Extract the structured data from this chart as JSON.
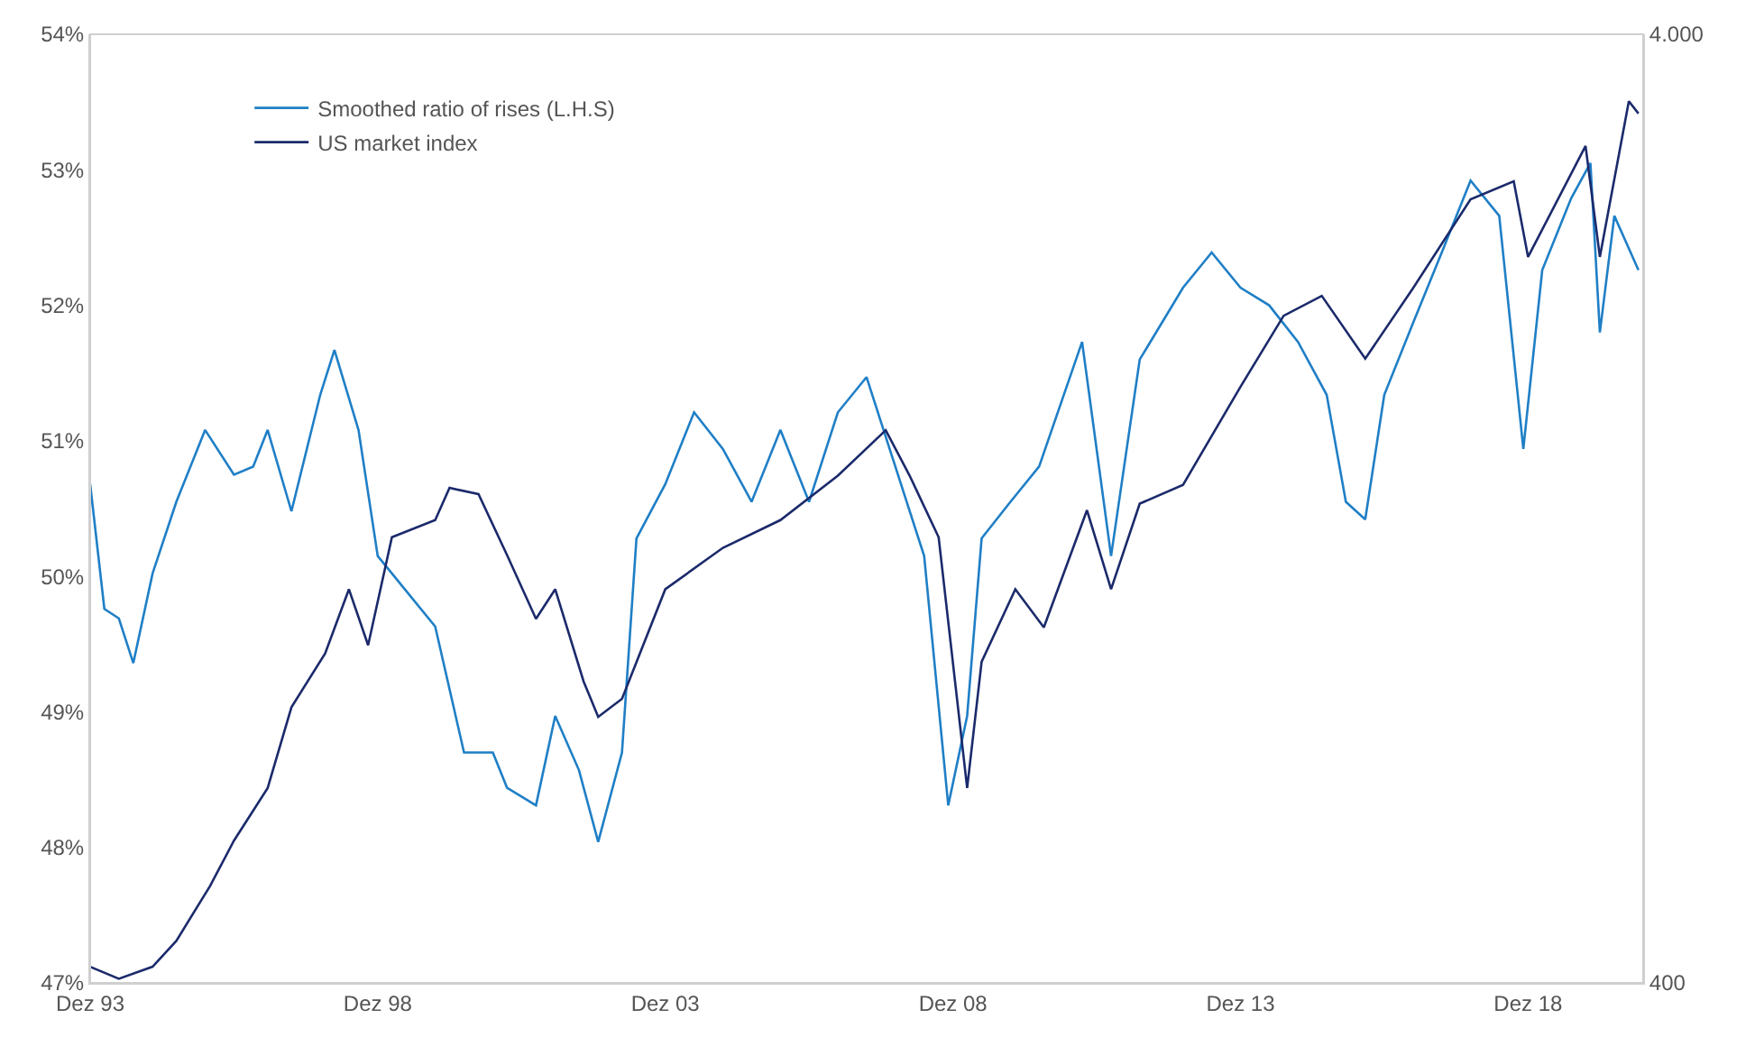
{
  "chart_data": {
    "type": "line",
    "xlim": [
      "1993-12",
      "2020-12"
    ],
    "xticks": [
      {
        "value": "1993-12",
        "label": "Dez 93"
      },
      {
        "value": "1998-12",
        "label": "Dez 98"
      },
      {
        "value": "2003-12",
        "label": "Dez 03"
      },
      {
        "value": "2008-12",
        "label": "Dez 08"
      },
      {
        "value": "2013-12",
        "label": "Dez 13"
      },
      {
        "value": "2018-12",
        "label": "Dez 18"
      }
    ],
    "ylim": [
      47,
      54
    ],
    "yticks": [
      {
        "value": 47,
        "label": "47%"
      },
      {
        "value": 48,
        "label": "48%"
      },
      {
        "value": 49,
        "label": "49%"
      },
      {
        "value": 50,
        "label": "50%"
      },
      {
        "value": 51,
        "label": "51%"
      },
      {
        "value": 52,
        "label": "52%"
      },
      {
        "value": 53,
        "label": "53%"
      },
      {
        "value": 54,
        "label": "54%"
      }
    ],
    "y2lim": [
      400,
      4000
    ],
    "y2ticks": [
      400,
      {
        "value": 4000,
        "label": "4.000"
      }
    ],
    "log": "y2",
    "legend": "top left",
    "series": [
      {
        "name": "Smoothed ratio of rises (L.H.S)",
        "color": "#1f7fc6",
        "x": [
          "1993-12",
          "1994-03",
          "1994-06",
          "1994-09",
          "1995-01",
          "1995-06",
          "1995-12",
          "1996-06",
          "1996-10",
          "1997-01",
          "1997-06",
          "1997-12",
          "1998-03",
          "1998-08",
          "1998-12",
          "1999-06",
          "1999-12",
          "2000-06",
          "2000-12",
          "2001-03",
          "2001-09",
          "2002-01",
          "2002-06",
          "2002-10",
          "2003-03",
          "2003-06",
          "2003-12",
          "2004-06",
          "2004-12",
          "2005-06",
          "2005-12",
          "2006-06",
          "2006-12",
          "2007-06",
          "2007-12",
          "2008-06",
          "2008-11",
          "2009-03",
          "2009-06",
          "2009-12",
          "2010-06",
          "2011-03",
          "2011-09",
          "2012-03",
          "2012-12",
          "2013-06",
          "2013-12",
          "2014-06",
          "2014-12",
          "2015-06",
          "2015-10",
          "2016-02",
          "2016-06",
          "2016-12",
          "2017-06",
          "2017-12",
          "2018-06",
          "2018-11",
          "2019-03",
          "2019-09",
          "2020-01",
          "2020-03",
          "2020-06",
          "2020-11"
        ],
        "values": [
          50.68,
          49.76,
          49.69,
          49.36,
          50.02,
          50.55,
          51.08,
          50.75,
          50.81,
          51.08,
          50.48,
          51.34,
          51.67,
          51.08,
          50.15,
          49.89,
          49.63,
          48.7,
          48.7,
          48.44,
          48.31,
          48.97,
          48.57,
          48.04,
          48.7,
          50.28,
          50.68,
          51.21,
          50.94,
          50.55,
          51.08,
          50.55,
          51.21,
          51.47,
          50.81,
          50.15,
          48.31,
          48.97,
          50.28,
          50.55,
          50.81,
          51.73,
          50.15,
          51.6,
          52.13,
          52.39,
          52.13,
          52.0,
          51.73,
          51.34,
          50.55,
          50.42,
          51.34,
          51.87,
          52.39,
          52.92,
          52.66,
          50.94,
          52.26,
          52.79,
          53.05,
          51.8,
          52.66,
          52.26
        ]
      },
      {
        "name": "US market index",
        "color": "#1b2a6b",
        "axis": "y2",
        "x": [
          "1993-12",
          "1994-06",
          "1995-01",
          "1995-06",
          "1996-01",
          "1996-06",
          "1997-01",
          "1997-06",
          "1998-01",
          "1998-06",
          "1998-10",
          "1999-03",
          "1999-12",
          "2000-03",
          "2000-09",
          "2001-03",
          "2001-09",
          "2002-01",
          "2002-07",
          "2002-10",
          "2003-03",
          "2003-12",
          "2004-12",
          "2005-12",
          "2006-12",
          "2007-10",
          "2008-03",
          "2008-09",
          "2009-03",
          "2009-06",
          "2010-01",
          "2010-07",
          "2011-04",
          "2011-09",
          "2012-03",
          "2012-12",
          "2013-12",
          "2014-09",
          "2015-05",
          "2016-02",
          "2016-12",
          "2017-12",
          "2018-09",
          "2018-12",
          "2019-12",
          "2020-03",
          "2020-09",
          "2020-11"
        ],
        "values": [
          416,
          404,
          416,
          443,
          506,
          565,
          642,
          781,
          890,
          1040,
          908,
          1180,
          1230,
          1330,
          1310,
          1130,
          968,
          1040,
          831,
          763,
          797,
          1040,
          1150,
          1230,
          1370,
          1530,
          1370,
          1180,
          642,
          872,
          1040,
          948,
          1260,
          1040,
          1280,
          1340,
          1700,
          2020,
          2120,
          1820,
          2160,
          2680,
          2800,
          2330,
          3050,
          2330,
          3400,
          3300
        ]
      }
    ]
  }
}
